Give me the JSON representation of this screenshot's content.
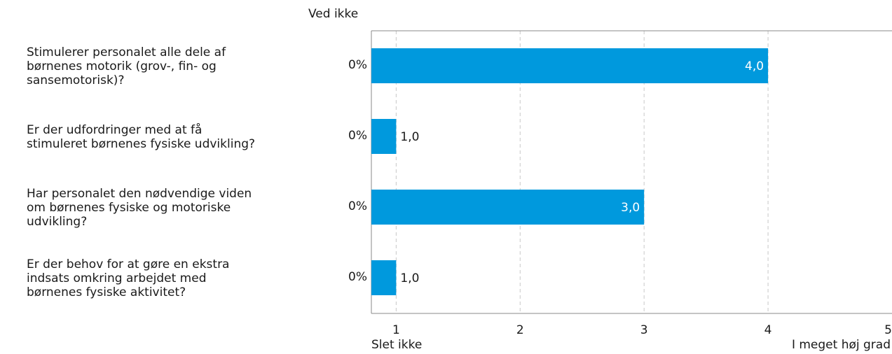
{
  "header": "Ved ikke",
  "chart_data": {
    "type": "bar",
    "orientation": "horizontal",
    "categories": [
      "Stimulerer personalet alle dele af\nbørnenes motorik (grov-, fin- og\nsansemotorisk)?",
      "Er der udfordringer med at få\nstimuleret børnenes fysiske udvikling?",
      "Har personalet den nødvendige viden\nom børnenes fysiske og motoriske\nudvikling?",
      "Er der behov for at gøre en ekstra\nindsats omkring arbejdet med\nbørnenes fysiske aktivitet?"
    ],
    "values": [
      4.0,
      1.0,
      3.0,
      1.0
    ],
    "value_labels": [
      "4,0",
      "1,0",
      "3,0",
      "1,0"
    ],
    "dont_know": [
      "0%",
      "0%",
      "0%",
      "0%"
    ],
    "xlim": [
      0.8,
      5
    ],
    "ticks": [
      "1",
      "2",
      "3",
      "4",
      "5"
    ],
    "min_label": "Slet ikke",
    "max_label": "I meget høj grad",
    "bar_color": "#0099dd",
    "grid": true
  }
}
